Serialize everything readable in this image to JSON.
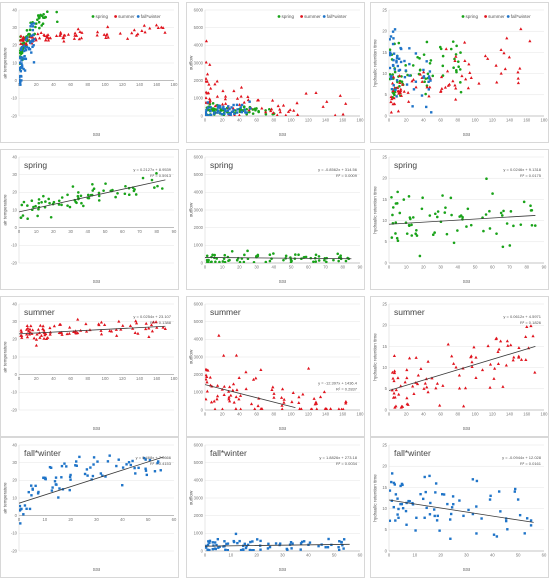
{
  "colors": {
    "spring": "#1aa31a",
    "summer": "#e0141e",
    "fall_winter": "#1f74c8",
    "trend": "#3a3a3a",
    "grid": "#e4e4e4",
    "border": "#bfbfbf"
  },
  "legend": [
    {
      "name": "spring",
      "key": "spring"
    },
    {
      "name": "summer",
      "key": "summer"
    },
    {
      "name": "fall*winter",
      "key": "fall_winter"
    }
  ],
  "chart_data": [
    {
      "id": "r0c0",
      "type": "scatter",
      "title": "",
      "xlabel": "SSI",
      "ylabel": "air temperature",
      "xlim": [
        0,
        180
      ],
      "xticks": [
        0,
        20,
        40,
        60,
        80,
        100,
        120,
        140,
        160,
        180
      ],
      "ylim": [
        -20,
        40
      ],
      "yticks": [
        -20,
        -10,
        0,
        10,
        20,
        30,
        40
      ],
      "show_legend": true,
      "series": [
        {
          "name": "spring",
          "key": "spring",
          "gen": {
            "seed": 11,
            "n": 70,
            "model": "log",
            "xmin": 1,
            "xmax": 45,
            "a": 5,
            "b": 9,
            "c": 0,
            "noise": 3
          }
        },
        {
          "name": "summer",
          "key": "summer",
          "gen": {
            "seed": 12,
            "n": 80,
            "model": "lin",
            "xmin": 2,
            "xmax": 170,
            "a": 23,
            "b": 0.035,
            "noise": 2
          }
        },
        {
          "name": "fall*winter",
          "key": "fall_winter",
          "gen": {
            "seed": 13,
            "n": 60,
            "model": "log",
            "xmin": 0.3,
            "xmax": 18,
            "a": -1,
            "b": 8,
            "c": 0,
            "noise": 5
          }
        }
      ]
    },
    {
      "id": "r0c1",
      "type": "scatter",
      "title": "",
      "xlabel": "SSI",
      "ylabel": "outflow",
      "xlim": [
        0,
        180
      ],
      "xticks": [
        0,
        20,
        40,
        60,
        80,
        100,
        120,
        140,
        160,
        180
      ],
      "ylim": [
        0,
        6000
      ],
      "yticks": [
        0,
        1000,
        2000,
        3000,
        4000,
        5000,
        6000
      ],
      "show_legend": true,
      "series": [
        {
          "name": "spring",
          "key": "spring",
          "gen": {
            "seed": 21,
            "n": 70,
            "model": "lin",
            "xmin": 1,
            "xmax": 85,
            "a": 320,
            "b": -0.8,
            "noise": 140,
            "floor": 40
          }
        },
        {
          "name": "summer",
          "key": "summer",
          "gen": {
            "seed": 22,
            "n": 70,
            "model": "exp",
            "xmin": 1,
            "xmax": 165,
            "a": 1400,
            "k": 0.035,
            "base": 150,
            "noise": 500,
            "floor": 40
          }
        },
        {
          "name": "fall*winter",
          "key": "fall_winter",
          "gen": {
            "seed": 23,
            "n": 50,
            "model": "lin",
            "xmin": 0.5,
            "xmax": 55,
            "a": 270,
            "b": 1.9,
            "noise": 200,
            "floor": 40
          }
        }
      ]
    },
    {
      "id": "r0c2",
      "type": "scatter",
      "title": "",
      "xlabel": "SSI",
      "ylabel": "hydraulic retention time",
      "xlim": [
        0,
        180
      ],
      "xticks": [
        0,
        20,
        40,
        60,
        80,
        100,
        120,
        140,
        160,
        180
      ],
      "ylim": [
        0,
        25
      ],
      "yticks": [
        0,
        5,
        10,
        15,
        20,
        25
      ],
      "show_legend": true,
      "series": [
        {
          "name": "spring",
          "key": "spring",
          "gen": {
            "seed": 31,
            "n": 70,
            "model": "lin",
            "xmin": 1,
            "xmax": 85,
            "a": 9.5,
            "b": 0.03,
            "noise": 3.5,
            "floor": 0.5
          }
        },
        {
          "name": "summer",
          "key": "summer",
          "gen": {
            "seed": 32,
            "n": 80,
            "model": "lin",
            "xmin": 2,
            "xmax": 165,
            "a": 5,
            "b": 0.06,
            "noise": 3.5,
            "floor": 0.5
          }
        },
        {
          "name": "fall*winter",
          "key": "fall_winter",
          "gen": {
            "seed": 33,
            "n": 60,
            "model": "lin",
            "xmin": 0.5,
            "xmax": 55,
            "a": 12.5,
            "b": -0.1,
            "noise": 4,
            "floor": 0.5
          }
        }
      ]
    },
    {
      "id": "r1c0",
      "type": "scatter",
      "title": "spring",
      "xlabel": "SSI",
      "ylabel": "air temperature",
      "xlim": [
        0,
        90
      ],
      "xticks": [
        0,
        10,
        20,
        30,
        40,
        50,
        60,
        70,
        80,
        90
      ],
      "ylim": [
        -20,
        40
      ],
      "yticks": [
        -20,
        -10,
        0,
        10,
        20,
        30,
        40
      ],
      "show_legend": false,
      "equation": "y = 0.2127x + 8.9539",
      "r2": "R² = 0.5913",
      "trend": {
        "m": 0.2127,
        "b": 8.9539,
        "x0": 0,
        "x1": 85
      },
      "series": [
        {
          "name": "spring",
          "key": "spring",
          "gen": {
            "seed": 41,
            "n": 75,
            "model": "lin",
            "xmin": 1,
            "xmax": 85,
            "a": 8.9539,
            "b": 0.2127,
            "noise": 3
          }
        }
      ]
    },
    {
      "id": "r1c1",
      "type": "scatter",
      "title": "spring",
      "xlabel": "SSI",
      "ylabel": "outflow",
      "xlim": [
        0,
        90
      ],
      "xticks": [
        0,
        10,
        20,
        30,
        40,
        50,
        60,
        70,
        80,
        90
      ],
      "ylim": [
        0,
        6000
      ],
      "yticks": [
        0,
        1000,
        2000,
        3000,
        4000,
        5000,
        6000
      ],
      "show_legend": false,
      "equation": "y = -0.8562x + 314.56",
      "r2": "R² = 0.0009",
      "trend": {
        "m": -0.8562,
        "b": 314.56,
        "x0": 0,
        "x1": 85
      },
      "series": [
        {
          "name": "spring",
          "key": "spring",
          "gen": {
            "seed": 42,
            "n": 75,
            "model": "lin",
            "xmin": 1,
            "xmax": 85,
            "a": 314.56,
            "b": -0.8562,
            "noise": 180,
            "floor": 40
          }
        }
      ]
    },
    {
      "id": "r1c2",
      "type": "scatter",
      "title": "spring",
      "xlabel": "SSI",
      "ylabel": "hydraulic retention time",
      "xlim": [
        0,
        90
      ],
      "xticks": [
        0,
        10,
        20,
        30,
        40,
        50,
        60,
        70,
        80,
        90
      ],
      "ylim": [
        0,
        25
      ],
      "yticks": [
        0,
        5,
        10,
        15,
        20,
        25
      ],
      "show_legend": false,
      "equation": "y = 0.0246x + 9.1318",
      "r2": "R² = 0.0175",
      "trend": {
        "m": 0.0246,
        "b": 9.1318,
        "x0": 0,
        "x1": 85
      },
      "series": [
        {
          "name": "spring",
          "key": "spring",
          "gen": {
            "seed": 43,
            "n": 75,
            "model": "lin",
            "xmin": 1,
            "xmax": 85,
            "a": 9.1318,
            "b": 0.0246,
            "noise": 3.5,
            "floor": 0.5
          }
        }
      ]
    },
    {
      "id": "r2c0",
      "type": "scatter",
      "title": "summer",
      "xlabel": "SSI",
      "ylabel": "air temperature",
      "xlim": [
        0,
        180
      ],
      "xticks": [
        0,
        20,
        40,
        60,
        80,
        100,
        120,
        140,
        160,
        180
      ],
      "ylim": [
        -20,
        40
      ],
      "yticks": [
        -20,
        -10,
        0,
        10,
        20,
        30,
        40
      ],
      "show_legend": false,
      "equation": "y = 0.0254x + 23.107",
      "r2": "R² = 0.1388",
      "trend": {
        "m": 0.0254,
        "b": 23.107,
        "x0": 0,
        "x1": 170
      },
      "series": [
        {
          "name": "summer",
          "key": "summer",
          "gen": {
            "seed": 51,
            "n": 90,
            "model": "lin",
            "xmin": 2,
            "xmax": 170,
            "a": 23.107,
            "b": 0.0254,
            "noise": 2.2
          }
        }
      ]
    },
    {
      "id": "r2c1",
      "type": "scatter",
      "title": "summer",
      "xlabel": "SSI",
      "ylabel": "outflow",
      "xlim": [
        0,
        180
      ],
      "xticks": [
        0,
        20,
        40,
        60,
        80,
        100,
        120,
        140,
        160,
        180
      ],
      "ylim": [
        0,
        6000
      ],
      "yticks": [
        0,
        1000,
        2000,
        3000,
        4000,
        5000,
        6000
      ],
      "show_legend": false,
      "equation": "y = -12.397x + 1436.4",
      "r2": "R² = 0.2837",
      "trend": {
        "m": -12.397,
        "b": 1436.4,
        "x0": 0,
        "x1": 105
      },
      "series": [
        {
          "name": "summer",
          "key": "summer",
          "gen": {
            "seed": 52,
            "n": 90,
            "model": "exp",
            "xmin": 1,
            "xmax": 165,
            "a": 1500,
            "k": 0.03,
            "base": 150,
            "noise": 600,
            "floor": 40
          }
        }
      ]
    },
    {
      "id": "r2c2",
      "type": "scatter",
      "title": "summer",
      "xlabel": "SSI",
      "ylabel": "hydraulic retention time",
      "xlim": [
        0,
        180
      ],
      "xticks": [
        0,
        20,
        40,
        60,
        80,
        100,
        120,
        140,
        160,
        180
      ],
      "ylim": [
        0,
        25
      ],
      "yticks": [
        0,
        5,
        10,
        15,
        20,
        25
      ],
      "show_legend": false,
      "equation": "y = 0.0612x + 4.5971",
      "r2": "R² = 0.1826",
      "trend": {
        "m": 0.0612,
        "b": 4.5971,
        "x0": 0,
        "x1": 170
      },
      "series": [
        {
          "name": "summer",
          "key": "summer",
          "gen": {
            "seed": 53,
            "n": 90,
            "model": "lin",
            "xmin": 2,
            "xmax": 170,
            "a": 4.5971,
            "b": 0.0612,
            "noise": 3.6,
            "floor": 0.5
          }
        }
      ]
    },
    {
      "id": "r3c0",
      "type": "scatter",
      "title": "fall*winter",
      "xlabel": "SSI",
      "ylabel": "air temperature",
      "xlim": [
        0,
        60
      ],
      "xticks": [
        0,
        10,
        20,
        30,
        40,
        50,
        60
      ],
      "ylim": [
        -20,
        40
      ],
      "yticks": [
        -20,
        -10,
        0,
        10,
        20,
        30,
        40
      ],
      "show_legend": false,
      "equation": "y = 0.468x + 7.0666",
      "r2": "R² = 0.4153",
      "trend": {
        "m": 0.468,
        "b": 7.0666,
        "x0": 0,
        "x1": 56
      },
      "series": [
        {
          "name": "fall*winter",
          "key": "fall_winter",
          "gen": {
            "seed": 61,
            "n": 80,
            "model": "log",
            "xmin": 0.3,
            "xmax": 55,
            "a": -1,
            "b": 8,
            "c": 0,
            "noise": 5
          }
        }
      ]
    },
    {
      "id": "r3c1",
      "type": "scatter",
      "title": "fall*winter",
      "xlabel": "SSI",
      "ylabel": "outflow",
      "xlim": [
        0,
        60
      ],
      "xticks": [
        0,
        10,
        20,
        30,
        40,
        50,
        60
      ],
      "ylim": [
        0,
        6000
      ],
      "yticks": [
        0,
        1000,
        2000,
        3000,
        4000,
        5000,
        6000
      ],
      "show_legend": false,
      "equation": "y = 1.8826x + 273.18",
      "r2": "R² = 0.0034",
      "trend": {
        "m": 1.8826,
        "b": 273.18,
        "x0": 0,
        "x1": 56
      },
      "series": [
        {
          "name": "fall*winter",
          "key": "fall_winter",
          "gen": {
            "seed": 62,
            "n": 80,
            "model": "lin",
            "xmin": 0.3,
            "xmax": 55,
            "a": 273.18,
            "b": 1.8826,
            "noise": 220,
            "floor": 40
          }
        }
      ]
    },
    {
      "id": "r3c2",
      "type": "scatter",
      "title": "fall*winter",
      "xlabel": "SSI",
      "ylabel": "hydraulic retention time",
      "xlim": [
        0,
        60
      ],
      "xticks": [
        0,
        10,
        20,
        30,
        40,
        50,
        60
      ],
      "ylim": [
        0,
        25
      ],
      "yticks": [
        0,
        5,
        10,
        15,
        20,
        25
      ],
      "show_legend": false,
      "equation": "y = -0.0944x + 12.028",
      "r2": "R² = 0.0161",
      "trend": {
        "m": -0.0944,
        "b": 12.028,
        "x0": 0,
        "x1": 56
      },
      "series": [
        {
          "name": "fall*winter",
          "key": "fall_winter",
          "gen": {
            "seed": 63,
            "n": 80,
            "model": "lin",
            "xmin": 0.3,
            "xmax": 55,
            "a": 12.028,
            "b": -0.0944,
            "noise": 4,
            "floor": 0.5
          }
        }
      ]
    }
  ]
}
